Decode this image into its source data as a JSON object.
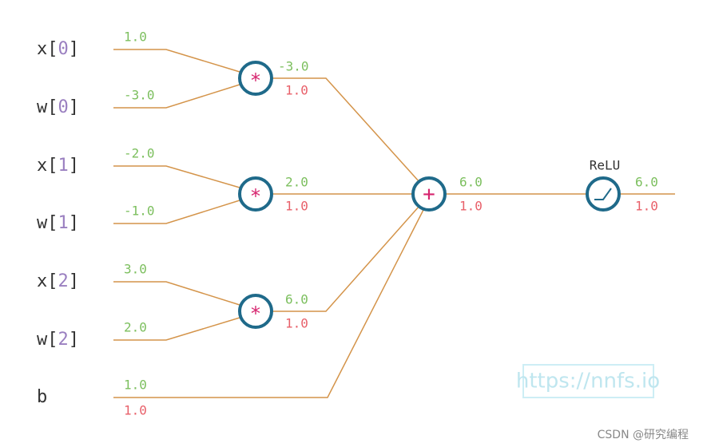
{
  "inputs": [
    {
      "label_parts": [
        "x[",
        "0",
        "]"
      ],
      "value": "1.0"
    },
    {
      "label_parts": [
        "w[",
        "0",
        "]"
      ],
      "value": "-3.0"
    },
    {
      "label_parts": [
        "x[",
        "1",
        "]"
      ],
      "value": "-2.0"
    },
    {
      "label_parts": [
        "w[",
        "1",
        "]"
      ],
      "value": "-1.0"
    },
    {
      "label_parts": [
        "x[",
        "2",
        "]"
      ],
      "value": "3.0"
    },
    {
      "label_parts": [
        "w[",
        "2",
        "]"
      ],
      "value": "2.0"
    },
    {
      "label_parts": [
        "b"
      ],
      "value": "1.0",
      "gradient": "1.0"
    }
  ],
  "multiply_nodes": [
    {
      "symbol": "*",
      "output": "-3.0",
      "gradient": "1.0"
    },
    {
      "symbol": "*",
      "output": "2.0",
      "gradient": "1.0"
    },
    {
      "symbol": "*",
      "output": "6.0",
      "gradient": "1.0"
    }
  ],
  "sum_node": {
    "symbol": "+",
    "output": "6.0",
    "gradient": "1.0"
  },
  "relu_node": {
    "label": "ReLU",
    "output": "6.0",
    "gradient": "1.0"
  },
  "watermark": "https://nnfs.io",
  "credit": "CSDN @研究编程"
}
